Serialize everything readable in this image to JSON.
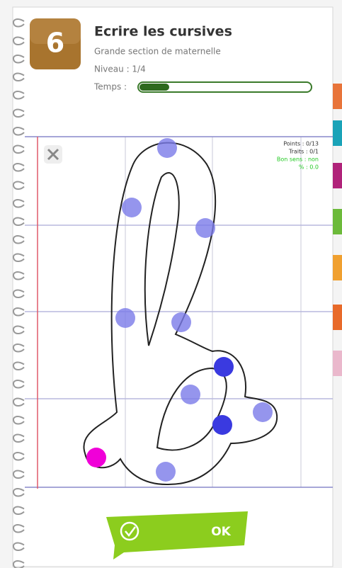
{
  "header": {
    "level_badge": "6",
    "title": "Ecrire les cursives",
    "subtitle": "Grande section de maternelle",
    "level": "Niveau : 1/4",
    "time_label": "Temps :"
  },
  "stats": {
    "points": "Points : 0/13",
    "strokes": "Traits : 0/1",
    "direction": "Bon sens : non",
    "percent": "% : 0.0"
  },
  "button": {
    "label": "OK"
  }
}
